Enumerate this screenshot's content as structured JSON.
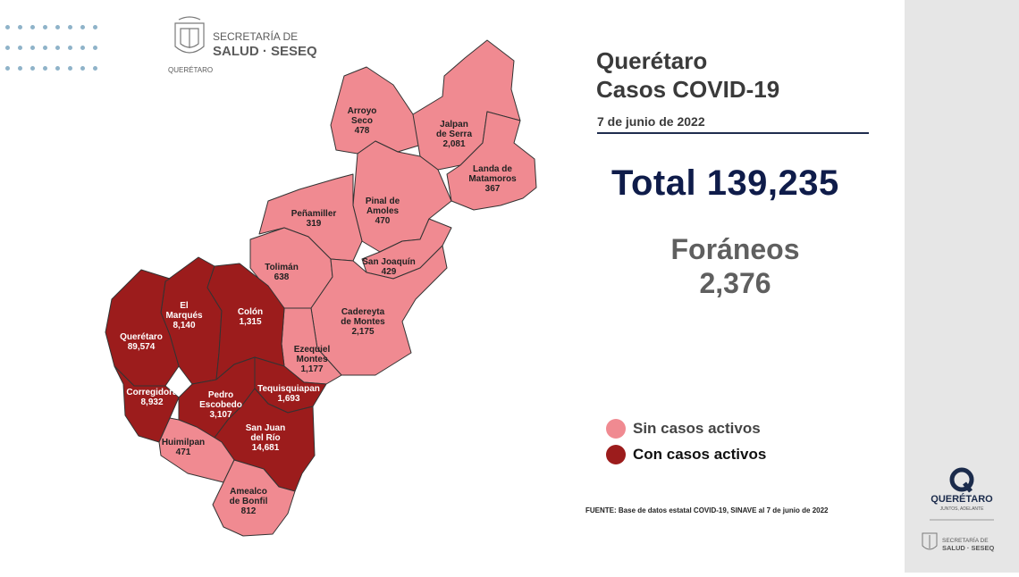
{
  "header": {
    "org_line1": "SECRETARÍA DE",
    "org_line2": "SALUD · SESEQ",
    "org_sub": "QUERÉTARO"
  },
  "report": {
    "title_line1": "Querétaro",
    "title_line2": "Casos COVID-19",
    "date": "7 de junio de 2022",
    "total": "Total 139,235",
    "foraneos_label": "Foráneos",
    "foraneos_value": "2,376"
  },
  "legend": [
    {
      "label": "Sin casos activos",
      "color": "#f08a91",
      "text_color": "#444444"
    },
    {
      "label": "Con casos activos",
      "color": "#9c1c1c",
      "text_color": "#111111"
    }
  ],
  "source": "FUENTE: Base de datos estatal  COVID-19,  SINAVE  al 7 de junio de 2022",
  "sidebar": {
    "logo_name": "QUERÉTARO",
    "logo_tagline": "JUNTOS, ADELANTE",
    "org_line1": "SECRETARÍA DE",
    "org_line2": "SALUD · SESEQ"
  },
  "municipalities": [
    {
      "name": "Arroyo Seco",
      "lines": [
        "Arroyo",
        "Seco"
      ],
      "cases": "478",
      "active": false
    },
    {
      "name": "Jalpan de Serra",
      "lines": [
        "Jalpan",
        "de Serra"
      ],
      "cases": "2,081",
      "active": false
    },
    {
      "name": "Landa de Matamoros",
      "lines": [
        "Landa de",
        "Matamoros"
      ],
      "cases": "367",
      "active": false
    },
    {
      "name": "Pinal de Amoles",
      "lines": [
        "Pinal de",
        "Amoles"
      ],
      "cases": "470",
      "active": false
    },
    {
      "name": "Peñamiller",
      "lines": [
        "Peñamiller"
      ],
      "cases": "319",
      "active": false
    },
    {
      "name": "San Joaquín",
      "lines": [
        "San Joaquín"
      ],
      "cases": "429",
      "active": false
    },
    {
      "name": "Tolimán",
      "lines": [
        "Tolimán"
      ],
      "cases": "638",
      "active": false
    },
    {
      "name": "Cadereyta de Montes",
      "lines": [
        "Cadereyta",
        "de Montes"
      ],
      "cases": "2,175",
      "active": false
    },
    {
      "name": "Colón",
      "lines": [
        "Colón"
      ],
      "cases": "1,315",
      "active": true
    },
    {
      "name": "El Marqués",
      "lines": [
        "El",
        "Marqués"
      ],
      "cases": "8,140",
      "active": true
    },
    {
      "name": "Querétaro",
      "lines": [
        "Querétaro"
      ],
      "cases": "89,574",
      "active": true
    },
    {
      "name": "Ezequiel Montes",
      "lines": [
        "Ezequiel",
        "Montes"
      ],
      "cases": "1,177",
      "active": false
    },
    {
      "name": "Tequisquiapan",
      "lines": [
        "Tequisquiapan"
      ],
      "cases": "1,693",
      "active": true
    },
    {
      "name": "Corregidora",
      "lines": [
        "Corregidora"
      ],
      "cases": "8,932",
      "active": true
    },
    {
      "name": "Pedro Escobedo",
      "lines": [
        "Pedro",
        "Escobedo"
      ],
      "cases": "3,107",
      "active": true
    },
    {
      "name": "San Juan del Río",
      "lines": [
        "San Juan",
        "del Río"
      ],
      "cases": "14,681",
      "active": true
    },
    {
      "name": "Huimilpan",
      "lines": [
        "Huimilpan"
      ],
      "cases": "471",
      "active": false
    },
    {
      "name": "Amealco de Bonfil",
      "lines": [
        "Amealco",
        "de Bonfil"
      ],
      "cases": "812",
      "active": false
    }
  ]
}
